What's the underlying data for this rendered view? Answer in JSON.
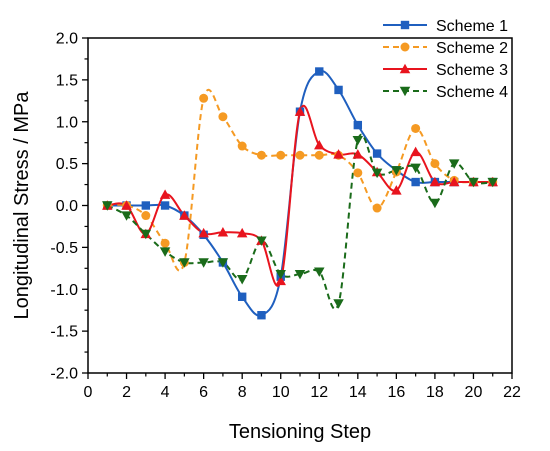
{
  "chart_data": {
    "type": "line",
    "xlabel": "Tensioning Step",
    "ylabel": "Longitudinal Stress / MPa",
    "xlim": [
      0,
      22
    ],
    "ylim": [
      -2.0,
      2.0
    ],
    "xticks": [
      0,
      2,
      4,
      6,
      8,
      10,
      12,
      14,
      16,
      18,
      20,
      22
    ],
    "yticks": [
      -2.0,
      -1.5,
      -1.0,
      -0.5,
      0.0,
      0.5,
      1.0,
      1.5,
      2.0
    ],
    "ytick_labels": [
      "-2.0",
      "-1.5",
      "-1.0",
      "-0.5",
      "0.0",
      "0.5",
      "1.0",
      "1.5",
      "2.0"
    ],
    "xtick_labels": [
      "0",
      "2",
      "4",
      "6",
      "8",
      "10",
      "12",
      "14",
      "16",
      "18",
      "20",
      "22"
    ],
    "grid": false,
    "legend_position": "top-right",
    "series": [
      {
        "name": "Scheme 1",
        "color": "#1f5fbf",
        "marker": "square",
        "dash": "solid",
        "x": [
          1,
          2,
          3,
          4,
          5,
          6,
          7,
          8,
          9,
          10,
          11,
          12,
          13,
          14,
          15,
          16,
          17,
          18,
          19,
          20,
          21
        ],
        "values": [
          0.0,
          0.0,
          0.0,
          0.0,
          -0.12,
          -0.35,
          -0.68,
          -1.09,
          -1.31,
          -0.85,
          1.12,
          1.6,
          1.38,
          0.96,
          0.62,
          0.42,
          0.28,
          0.28,
          0.28,
          0.28,
          0.28
        ]
      },
      {
        "name": "Scheme 2",
        "color": "#f59a23",
        "marker": "circle",
        "dash": "dashed",
        "x": [
          1,
          2,
          3,
          4,
          5,
          6,
          7,
          8,
          9,
          10,
          11,
          12,
          13,
          14,
          15,
          16,
          17,
          18,
          19,
          20,
          21
        ],
        "values": [
          0.0,
          0.0,
          -0.12,
          -0.45,
          -0.68,
          1.28,
          1.06,
          0.71,
          0.6,
          0.6,
          0.6,
          0.6,
          0.6,
          0.39,
          -0.03,
          0.4,
          0.92,
          0.5,
          0.3,
          0.28,
          0.28
        ]
      },
      {
        "name": "Scheme 3",
        "color": "#e8141e",
        "marker": "triangle-up",
        "dash": "solid",
        "x": [
          1,
          2,
          3,
          4,
          5,
          6,
          7,
          8,
          9,
          10,
          11,
          12,
          13,
          14,
          15,
          16,
          17,
          18,
          19,
          20,
          21
        ],
        "values": [
          0.0,
          0.0,
          -0.34,
          0.13,
          -0.12,
          -0.33,
          -0.32,
          -0.33,
          -0.42,
          -0.9,
          1.12,
          0.72,
          0.61,
          0.61,
          0.4,
          0.18,
          0.64,
          0.28,
          0.28,
          0.28,
          0.28
        ]
      },
      {
        "name": "Scheme 4",
        "color": "#1a6b1a",
        "marker": "triangle-down",
        "dash": "dashed",
        "x": [
          1,
          2,
          3,
          4,
          5,
          6,
          7,
          8,
          9,
          10,
          11,
          12,
          13,
          14,
          15,
          16,
          17,
          18,
          19,
          20,
          21
        ],
        "values": [
          0.0,
          -0.12,
          -0.34,
          -0.55,
          -0.68,
          -0.68,
          -0.68,
          -0.88,
          -0.42,
          -0.82,
          -0.82,
          -0.79,
          -1.17,
          0.78,
          0.39,
          0.42,
          0.45,
          0.03,
          0.5,
          0.28,
          0.28
        ]
      }
    ]
  }
}
